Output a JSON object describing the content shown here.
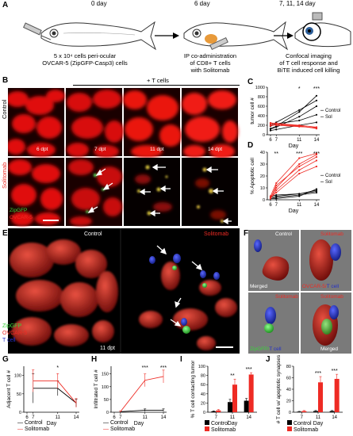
{
  "figure": {
    "panel_labels": {
      "A": "A",
      "B": "B",
      "C": "C",
      "D": "D",
      "E": "E",
      "F": "F",
      "G": "G",
      "H": "H",
      "I": "I",
      "J": "J"
    },
    "panel_a": {
      "day0": "0 day",
      "day6": "6 day",
      "day_final": "7, 11, 14 day",
      "step1": [
        "5 x 10⁴ cells peri-ocular",
        "OVCAR-5 (ZipGFP-Casp3) cells"
      ],
      "step2": [
        "IP co-administration",
        "of  CD8+ T cells",
        "with Solitomab"
      ],
      "step3": [
        "Confocal imaging",
        "of T cell response and",
        "BiTE induced cell killing"
      ]
    },
    "panel_b": {
      "plus_t_cells": "+ T cells",
      "row_control": "Control",
      "row_solitomab": "Solitomab",
      "dpt": [
        "6 dpt",
        "7 dpt",
        "11 dpt",
        "14 dpt"
      ],
      "legend_zipgfp": "ZipGFP",
      "legend_ovcar": "OVCAR-5"
    },
    "panel_e": {
      "control": "Control",
      "solitomab": "Solitomab",
      "dpt": "11 dpt",
      "legend": [
        "ZipGFP",
        "OVCAR-5",
        "T cell"
      ]
    },
    "panel_f": {
      "control": "Control",
      "solitomab": "Solitomab",
      "merged": "Merged",
      "ovcar_tcell": "OVCAR-5/",
      "tcell": "T cell",
      "zipgfp_tcell": "ZipGFP/",
      "zipgfp_tcell2": "T cell"
    },
    "legend_gh": {
      "control": "Control",
      "solitomab": "Solitomab"
    },
    "colors": {
      "control": "#000000",
      "solitomab": "#ee2b24",
      "gfp": "#3ad13a",
      "tcell": "#2430c8"
    }
  },
  "chart_data": [
    {
      "id": "C",
      "type": "line",
      "ylabel": "tumor cell #",
      "xlabel": "Day",
      "x": [
        6,
        7,
        11,
        14
      ],
      "x_ticks": [
        "6",
        "7",
        "11",
        "14"
      ],
      "y_ticks": [
        "0",
        "200",
        "400",
        "600",
        "800",
        "1000"
      ],
      "ylim": [
        0,
        1000
      ],
      "significance": [
        {
          "x": 11,
          "label": "*"
        },
        {
          "x": 14,
          "label": "***"
        }
      ],
      "series": [
        {
          "name": "Control",
          "lines": [
            [
              130,
              180,
              480,
              820
            ],
            [
              120,
              160,
              380,
              600
            ],
            [
              180,
              230,
              300,
              420
            ],
            [
              90,
              110,
              200,
              260
            ],
            [
              200,
              260,
              520,
              720
            ]
          ]
        },
        {
          "name": "Sol",
          "lines": [
            [
              220,
              200,
              170,
              150
            ],
            [
              250,
              240,
              200,
              160
            ],
            [
              190,
              210,
              180,
              140
            ],
            [
              240,
              230,
              190,
              130
            ]
          ]
        }
      ],
      "end_labels": [
        "Control",
        "Sol"
      ]
    },
    {
      "id": "D",
      "type": "line",
      "ylabel": "% Apoptotic cell",
      "xlabel": "Day",
      "x": [
        6,
        7,
        11,
        14
      ],
      "x_ticks": [
        "6",
        "7",
        "11",
        "14"
      ],
      "y_ticks": [
        "0",
        "10",
        "20",
        "30",
        "40"
      ],
      "ylim": [
        0,
        40
      ],
      "significance": [
        {
          "x": 7,
          "label": "**"
        },
        {
          "x": 11,
          "label": "***"
        },
        {
          "x": 14,
          "label": "***"
        }
      ],
      "series": [
        {
          "name": "Control",
          "lines": [
            [
              1,
              2,
              4,
              6
            ],
            [
              2,
              3,
              5,
              8
            ],
            [
              1,
              1,
              3,
              9
            ],
            [
              3,
              4,
              5,
              7
            ]
          ]
        },
        {
          "name": "Sol",
          "lines": [
            [
              2,
              10,
              30,
              38
            ],
            [
              1,
              8,
              25,
              33
            ],
            [
              3,
              14,
              35,
              39
            ],
            [
              2,
              6,
              22,
              28
            ],
            [
              1,
              12,
              28,
              36
            ]
          ]
        }
      ],
      "end_labels": [
        "Control",
        "Sol"
      ]
    },
    {
      "id": "G",
      "type": "line",
      "ylabel": "Adjacent T cell #",
      "xlabel": "Day",
      "x": [
        7,
        11,
        14
      ],
      "x_ticks": [
        "6",
        "7",
        "11",
        "14"
      ],
      "y_ticks": [
        "0",
        "50",
        "100"
      ],
      "ylim": [
        0,
        125
      ],
      "significance": [
        {
          "x": 11,
          "label": "*"
        }
      ],
      "series": [
        {
          "name": "Control",
          "values": [
            65,
            65,
            25
          ],
          "err": [
            40,
            20,
            10
          ]
        },
        {
          "name": "Solitomab",
          "values": [
            85,
            85,
            25
          ],
          "err": [
            30,
            20,
            12
          ]
        }
      ]
    },
    {
      "id": "H",
      "type": "line",
      "ylabel": "Infiltrated T cell #",
      "xlabel": "Day",
      "x": [
        7,
        11,
        14
      ],
      "x_ticks": [
        "6",
        "7",
        "11",
        "14"
      ],
      "y_ticks": [
        "0",
        "50",
        "100",
        "150"
      ],
      "ylim": [
        0,
        180
      ],
      "significance": [
        {
          "x": 11,
          "label": "***"
        },
        {
          "x": 14,
          "label": "***"
        }
      ],
      "series": [
        {
          "name": "Control",
          "values": [
            2,
            8,
            8
          ],
          "err": [
            2,
            5,
            5
          ]
        },
        {
          "name": "Solitomab",
          "values": [
            2,
            125,
            140
          ],
          "err": [
            2,
            25,
            25
          ]
        }
      ]
    },
    {
      "id": "I",
      "type": "bar",
      "ylabel": "% T cell contacting tumor",
      "xlabel": "Day",
      "categories": [
        "7",
        "11",
        "14"
      ],
      "y_ticks": [
        "0",
        "20",
        "40",
        "60",
        "80",
        "100"
      ],
      "ylim": [
        0,
        100
      ],
      "significance": [
        {
          "index": 1,
          "label": "**"
        },
        {
          "index": 2,
          "label": "***"
        }
      ],
      "series": [
        {
          "name": "Control",
          "values": [
            2,
            22,
            25
          ],
          "err": [
            1,
            6,
            5
          ]
        },
        {
          "name": "Solitomab",
          "values": [
            4,
            60,
            82
          ],
          "err": [
            2,
            12,
            4
          ]
        }
      ]
    },
    {
      "id": "J",
      "type": "bar",
      "ylabel": "# T cell w/ apoptotic synapses",
      "xlabel": "Day",
      "categories": [
        "7",
        "11",
        "14"
      ],
      "y_ticks": [
        "0",
        "20",
        "40",
        "60",
        "80"
      ],
      "ylim": [
        0,
        80
      ],
      "significance": [
        {
          "index": 1,
          "label": "***"
        },
        {
          "index": 2,
          "label": "***"
        }
      ],
      "series": [
        {
          "name": "Control",
          "values": [
            1,
            2,
            2
          ],
          "err": [
            0.5,
            1,
            1
          ]
        },
        {
          "name": "Solitomab",
          "values": [
            2,
            52,
            58
          ],
          "err": [
            1,
            10,
            8
          ]
        }
      ]
    }
  ]
}
